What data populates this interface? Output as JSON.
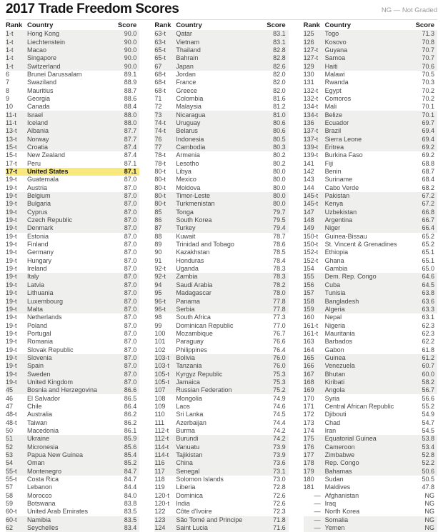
{
  "title": "2017 Trade Freedom Scores",
  "legend": "NG — Not Graded",
  "table_header": {
    "rank": "Rank",
    "country": "Country",
    "score": "Score"
  },
  "colors": {
    "highlight": "#f9e87c",
    "stripe": "#efefee"
  },
  "stripe_band_size": 5,
  "columns": [
    {
      "rows": [
        [
          "1-t",
          "Hong Kong",
          "90.0"
        ],
        [
          "1-t",
          "Liechtenstein",
          "90.0"
        ],
        [
          "1-t",
          "Macao",
          "90.0"
        ],
        [
          "1-t",
          "Singapore",
          "90.0"
        ],
        [
          "1-t",
          "Switzerland",
          "90.0"
        ],
        [
          "6",
          "Brunei Darussalam",
          "89.1"
        ],
        [
          "7",
          "Swaziland",
          "88.9"
        ],
        [
          "8",
          "Mauritius",
          "88.7"
        ],
        [
          "9",
          "Georgia",
          "88.6"
        ],
        [
          "10",
          "Canada",
          "88.4"
        ],
        [
          "11-t",
          "Israel",
          "88.0"
        ],
        [
          "11-t",
          "Iceland",
          "88.0"
        ],
        [
          "13-t",
          "Albania",
          "87.7"
        ],
        [
          "13-t",
          "Norway",
          "87.7"
        ],
        [
          "15-t",
          "Croatia",
          "87.4"
        ],
        [
          "15-t",
          "New Zealand",
          "87.4"
        ],
        [
          "17-t",
          "Peru",
          "87.1"
        ],
        [
          "17-t",
          "United States",
          "87.1",
          true
        ],
        [
          "19-t",
          "Guatemala",
          "87.0"
        ],
        [
          "19-t",
          "Austria",
          "87.0"
        ],
        [
          "19-t",
          "Belgium",
          "87.0"
        ],
        [
          "19-t",
          "Bulgaria",
          "87.0"
        ],
        [
          "19-t",
          "Cyprus",
          "87.0"
        ],
        [
          "19-t",
          "Czech Republic",
          "87.0"
        ],
        [
          "19-t",
          "Denmark",
          "87.0"
        ],
        [
          "19-t",
          "Estonia",
          "87.0"
        ],
        [
          "19-t",
          "Finland",
          "87.0"
        ],
        [
          "19-t",
          "Germany",
          "87.0"
        ],
        [
          "19-t",
          "Hungary",
          "87.0"
        ],
        [
          "19-t",
          "Ireland",
          "87.0"
        ],
        [
          "19-t",
          "Italy",
          "87.0"
        ],
        [
          "19-t",
          "Latvia",
          "87.0"
        ],
        [
          "19-t",
          "Lithuania",
          "87.0"
        ],
        [
          "19-t",
          "Luxembourg",
          "87.0"
        ],
        [
          "19-t",
          "Malta",
          "87.0"
        ],
        [
          "19-t",
          "Netherlands",
          "87.0"
        ],
        [
          "19-t",
          "Poland",
          "87.0"
        ],
        [
          "19-t",
          "Portugal",
          "87.0"
        ],
        [
          "19-t",
          "Romania",
          "87.0"
        ],
        [
          "19-t",
          "Slovak Republic",
          "87.0"
        ],
        [
          "19-t",
          "Slovenia",
          "87.0"
        ],
        [
          "19-t",
          "Spain",
          "87.0"
        ],
        [
          "19-t",
          "Sweden",
          "87.0"
        ],
        [
          "19-t",
          "United Kingdom",
          "87.0"
        ],
        [
          "45",
          "Bosnia and Herzegovina",
          "86.6"
        ],
        [
          "46",
          "El Salvador",
          "86.5"
        ],
        [
          "47",
          "Chile",
          "86.4"
        ],
        [
          "48-t",
          "Australia",
          "86.2"
        ],
        [
          "48-t",
          "Taiwan",
          "86.2"
        ],
        [
          "50",
          "Macedonia",
          "86.1"
        ],
        [
          "51",
          "Ukraine",
          "85.9"
        ],
        [
          "52",
          "Micronesia",
          "85.6"
        ],
        [
          "53",
          "Papua New Guinea",
          "85.4"
        ],
        [
          "54",
          "Oman",
          "85.2"
        ],
        [
          "55-t",
          "Montenegro",
          "84.7"
        ],
        [
          "55-t",
          "Costa Rica",
          "84.7"
        ],
        [
          "57",
          "Lebanon",
          "84.4"
        ],
        [
          "58",
          "Morocco",
          "84.0"
        ],
        [
          "59",
          "Botswana",
          "83.8"
        ],
        [
          "60-t",
          "United Arab Emirates",
          "83.5"
        ],
        [
          "60-t",
          "Namibia",
          "83.5"
        ],
        [
          "62",
          "Seychelles",
          "83.4"
        ]
      ]
    },
    {
      "rows": [
        [
          "63-t",
          "Qatar",
          "83.1"
        ],
        [
          "63-t",
          "Vietnam",
          "83.1"
        ],
        [
          "65-t",
          "Thailand",
          "82.8"
        ],
        [
          "65-t",
          "Bahrain",
          "82.8"
        ],
        [
          "67",
          "Japan",
          "82.6"
        ],
        [
          "68-t",
          "Jordan",
          "82.0"
        ],
        [
          "68-t",
          "France",
          "82.0"
        ],
        [
          "68-t",
          "Greece",
          "82.0"
        ],
        [
          "71",
          "Colombia",
          "81.6"
        ],
        [
          "72",
          "Malaysia",
          "81.2"
        ],
        [
          "73",
          "Nicaragua",
          "81.0"
        ],
        [
          "74-t",
          "Uruguay",
          "80.6"
        ],
        [
          "74-t",
          "Belarus",
          "80.6"
        ],
        [
          "76",
          "Indonesia",
          "80.5"
        ],
        [
          "77",
          "Cambodia",
          "80.3"
        ],
        [
          "78-t",
          "Armenia",
          "80.2"
        ],
        [
          "78-t",
          "Lesotho",
          "80.2"
        ],
        [
          "80-t",
          "Libya",
          "80.0"
        ],
        [
          "80-t",
          "Mexico",
          "80.0"
        ],
        [
          "80-t",
          "Moldova",
          "80.0"
        ],
        [
          "80-t",
          "Timor-Leste",
          "80.0"
        ],
        [
          "80-t",
          "Turkmenistan",
          "80.0"
        ],
        [
          "85",
          "Tonga",
          "79.7"
        ],
        [
          "86",
          "South Korea",
          "79.5"
        ],
        [
          "87",
          "Turkey",
          "79.4"
        ],
        [
          "88",
          "Kuwait",
          "78.7"
        ],
        [
          "89",
          "Trinidad and Tobago",
          "78.6"
        ],
        [
          "90",
          "Kazakhstan",
          "78.5"
        ],
        [
          "91",
          "Honduras",
          "78.4"
        ],
        [
          "92-t",
          "Uganda",
          "78.3"
        ],
        [
          "92-t",
          "Zambia",
          "78.3"
        ],
        [
          "94",
          "Saudi Arabia",
          "78.2"
        ],
        [
          "95",
          "Madagascar",
          "78.0"
        ],
        [
          "96-t",
          "Panama",
          "77.8"
        ],
        [
          "96-t",
          "Serbia",
          "77.8"
        ],
        [
          "98",
          "South Africa",
          "77.3"
        ],
        [
          "99",
          "Dominican Republic",
          "77.0"
        ],
        [
          "100",
          "Mozambique",
          "76.7"
        ],
        [
          "101",
          "Paraguay",
          "76.6"
        ],
        [
          "102",
          "Philippines",
          "76.4"
        ],
        [
          "103-t",
          "Bolivia",
          "76.0"
        ],
        [
          "103-t",
          "Tanzania",
          "76.0"
        ],
        [
          "105-t",
          "Kyrgyz Republic",
          "75.3"
        ],
        [
          "105-t",
          "Jamaica",
          "75.3"
        ],
        [
          "107",
          "Russian Federation",
          "75.2"
        ],
        [
          "108",
          "Mongolia",
          "74.9"
        ],
        [
          "109",
          "Laos",
          "74.6"
        ],
        [
          "110",
          "Sri Lanka",
          "74.5"
        ],
        [
          "111",
          "Azerbaijan",
          "74.4"
        ],
        [
          "112-t",
          "Burma",
          "74.2"
        ],
        [
          "112-t",
          "Burundi",
          "74.2"
        ],
        [
          "114-t",
          "Vanuatu",
          "73.9"
        ],
        [
          "114-t",
          "Tajikistan",
          "73.9"
        ],
        [
          "116",
          "China",
          "73.6"
        ],
        [
          "117",
          "Senegal",
          "73.1"
        ],
        [
          "118",
          "Solomon Islands",
          "73.0"
        ],
        [
          "119",
          "Liberia",
          "72.8"
        ],
        [
          "120-t",
          "Dominica",
          "72.6"
        ],
        [
          "120-t",
          "India",
          "72.6"
        ],
        [
          "122",
          "Côte d'Ivoire",
          "72.3"
        ],
        [
          "123",
          "São Tomé and Principe",
          "71.8"
        ],
        [
          "124",
          "Saint Lucia",
          "71.6"
        ]
      ]
    },
    {
      "rows": [
        [
          "125",
          "Togo",
          "71.3"
        ],
        [
          "126",
          "Kosovo",
          "70.8"
        ],
        [
          "127-t",
          "Guyana",
          "70.7"
        ],
        [
          "127-t",
          "Samoa",
          "70.7"
        ],
        [
          "129",
          "Haiti",
          "70.6"
        ],
        [
          "130",
          "Malawi",
          "70.5"
        ],
        [
          "131",
          "Rwanda",
          "70.3"
        ],
        [
          "132-t",
          "Egypt",
          "70.2"
        ],
        [
          "132-t",
          "Comoros",
          "70.2"
        ],
        [
          "134-t",
          "Mali",
          "70.1"
        ],
        [
          "134-t",
          "Belize",
          "70.1"
        ],
        [
          "136",
          "Ecuador",
          "69.7"
        ],
        [
          "137-t",
          "Brazil",
          "69.4"
        ],
        [
          "137-t",
          "Sierra Leone",
          "69.4"
        ],
        [
          "139-t",
          "Eritrea",
          "69.2"
        ],
        [
          "139-t",
          "Burkina Faso",
          "69.2"
        ],
        [
          "141",
          "Fiji",
          "68.8"
        ],
        [
          "142",
          "Benin",
          "68.7"
        ],
        [
          "143",
          "Suriname",
          "68.4"
        ],
        [
          "144",
          "Cabo Verde",
          "68.2"
        ],
        [
          "145-t",
          "Pakistan",
          "67.2"
        ],
        [
          "145-t",
          "Kenya",
          "67.2"
        ],
        [
          "147",
          "Uzbekistan",
          "66.8"
        ],
        [
          "148",
          "Argentina",
          "66.7"
        ],
        [
          "149",
          "Niger",
          "66.4"
        ],
        [
          "150-t",
          "Guinea-Bissau",
          "65.2"
        ],
        [
          "150-t",
          "St. Vincent & Grenadines",
          "65.2"
        ],
        [
          "152-t",
          "Ethiopia",
          "65.1"
        ],
        [
          "152-t",
          "Ghana",
          "65.1"
        ],
        [
          "154",
          "Gambia",
          "65.0"
        ],
        [
          "155",
          "Dem. Rep. Congo",
          "64.6"
        ],
        [
          "156",
          "Cuba",
          "64.5"
        ],
        [
          "157",
          "Tunisia",
          "63.8"
        ],
        [
          "158",
          "Bangladesh",
          "63.6"
        ],
        [
          "159",
          "Algeria",
          "63.3"
        ],
        [
          "160",
          "Nepal",
          "63.1"
        ],
        [
          "161-t",
          "Nigeria",
          "62.3"
        ],
        [
          "161-t",
          "Mauritania",
          "62.3"
        ],
        [
          "163",
          "Barbados",
          "62.2"
        ],
        [
          "164",
          "Gabon",
          "61.8"
        ],
        [
          "165",
          "Guinea",
          "61.2"
        ],
        [
          "166",
          "Venezuela",
          "60.7"
        ],
        [
          "167",
          "Bhutan",
          "60.0"
        ],
        [
          "168",
          "Kiribati",
          "58.2"
        ],
        [
          "169",
          "Angola",
          "56.7"
        ],
        [
          "170",
          "Syria",
          "56.6"
        ],
        [
          "171",
          "Central African Republic",
          "55.2"
        ],
        [
          "172",
          "Djibouti",
          "54.9"
        ],
        [
          "173",
          "Chad",
          "54.7"
        ],
        [
          "174",
          "Iran",
          "54.5"
        ],
        [
          "175",
          "Equatorial Guinea",
          "53.8"
        ],
        [
          "176",
          "Cameroon",
          "53.4"
        ],
        [
          "177",
          "Zimbabwe",
          "52.8"
        ],
        [
          "178",
          "Rep. Congo",
          "52.2"
        ],
        [
          "179",
          "Bahamas",
          "50.6"
        ],
        [
          "180",
          "Sudan",
          "50.5"
        ],
        [
          "181",
          "Maldives",
          "47.8"
        ],
        [
          "—",
          "Afghanistan",
          "NG"
        ],
        [
          "—",
          "Iraq",
          "NG"
        ],
        [
          "—",
          "North Korea",
          "NG"
        ],
        [
          "—",
          "Somalia",
          "NG"
        ],
        [
          "—",
          "Yemen",
          "NG"
        ]
      ]
    }
  ]
}
